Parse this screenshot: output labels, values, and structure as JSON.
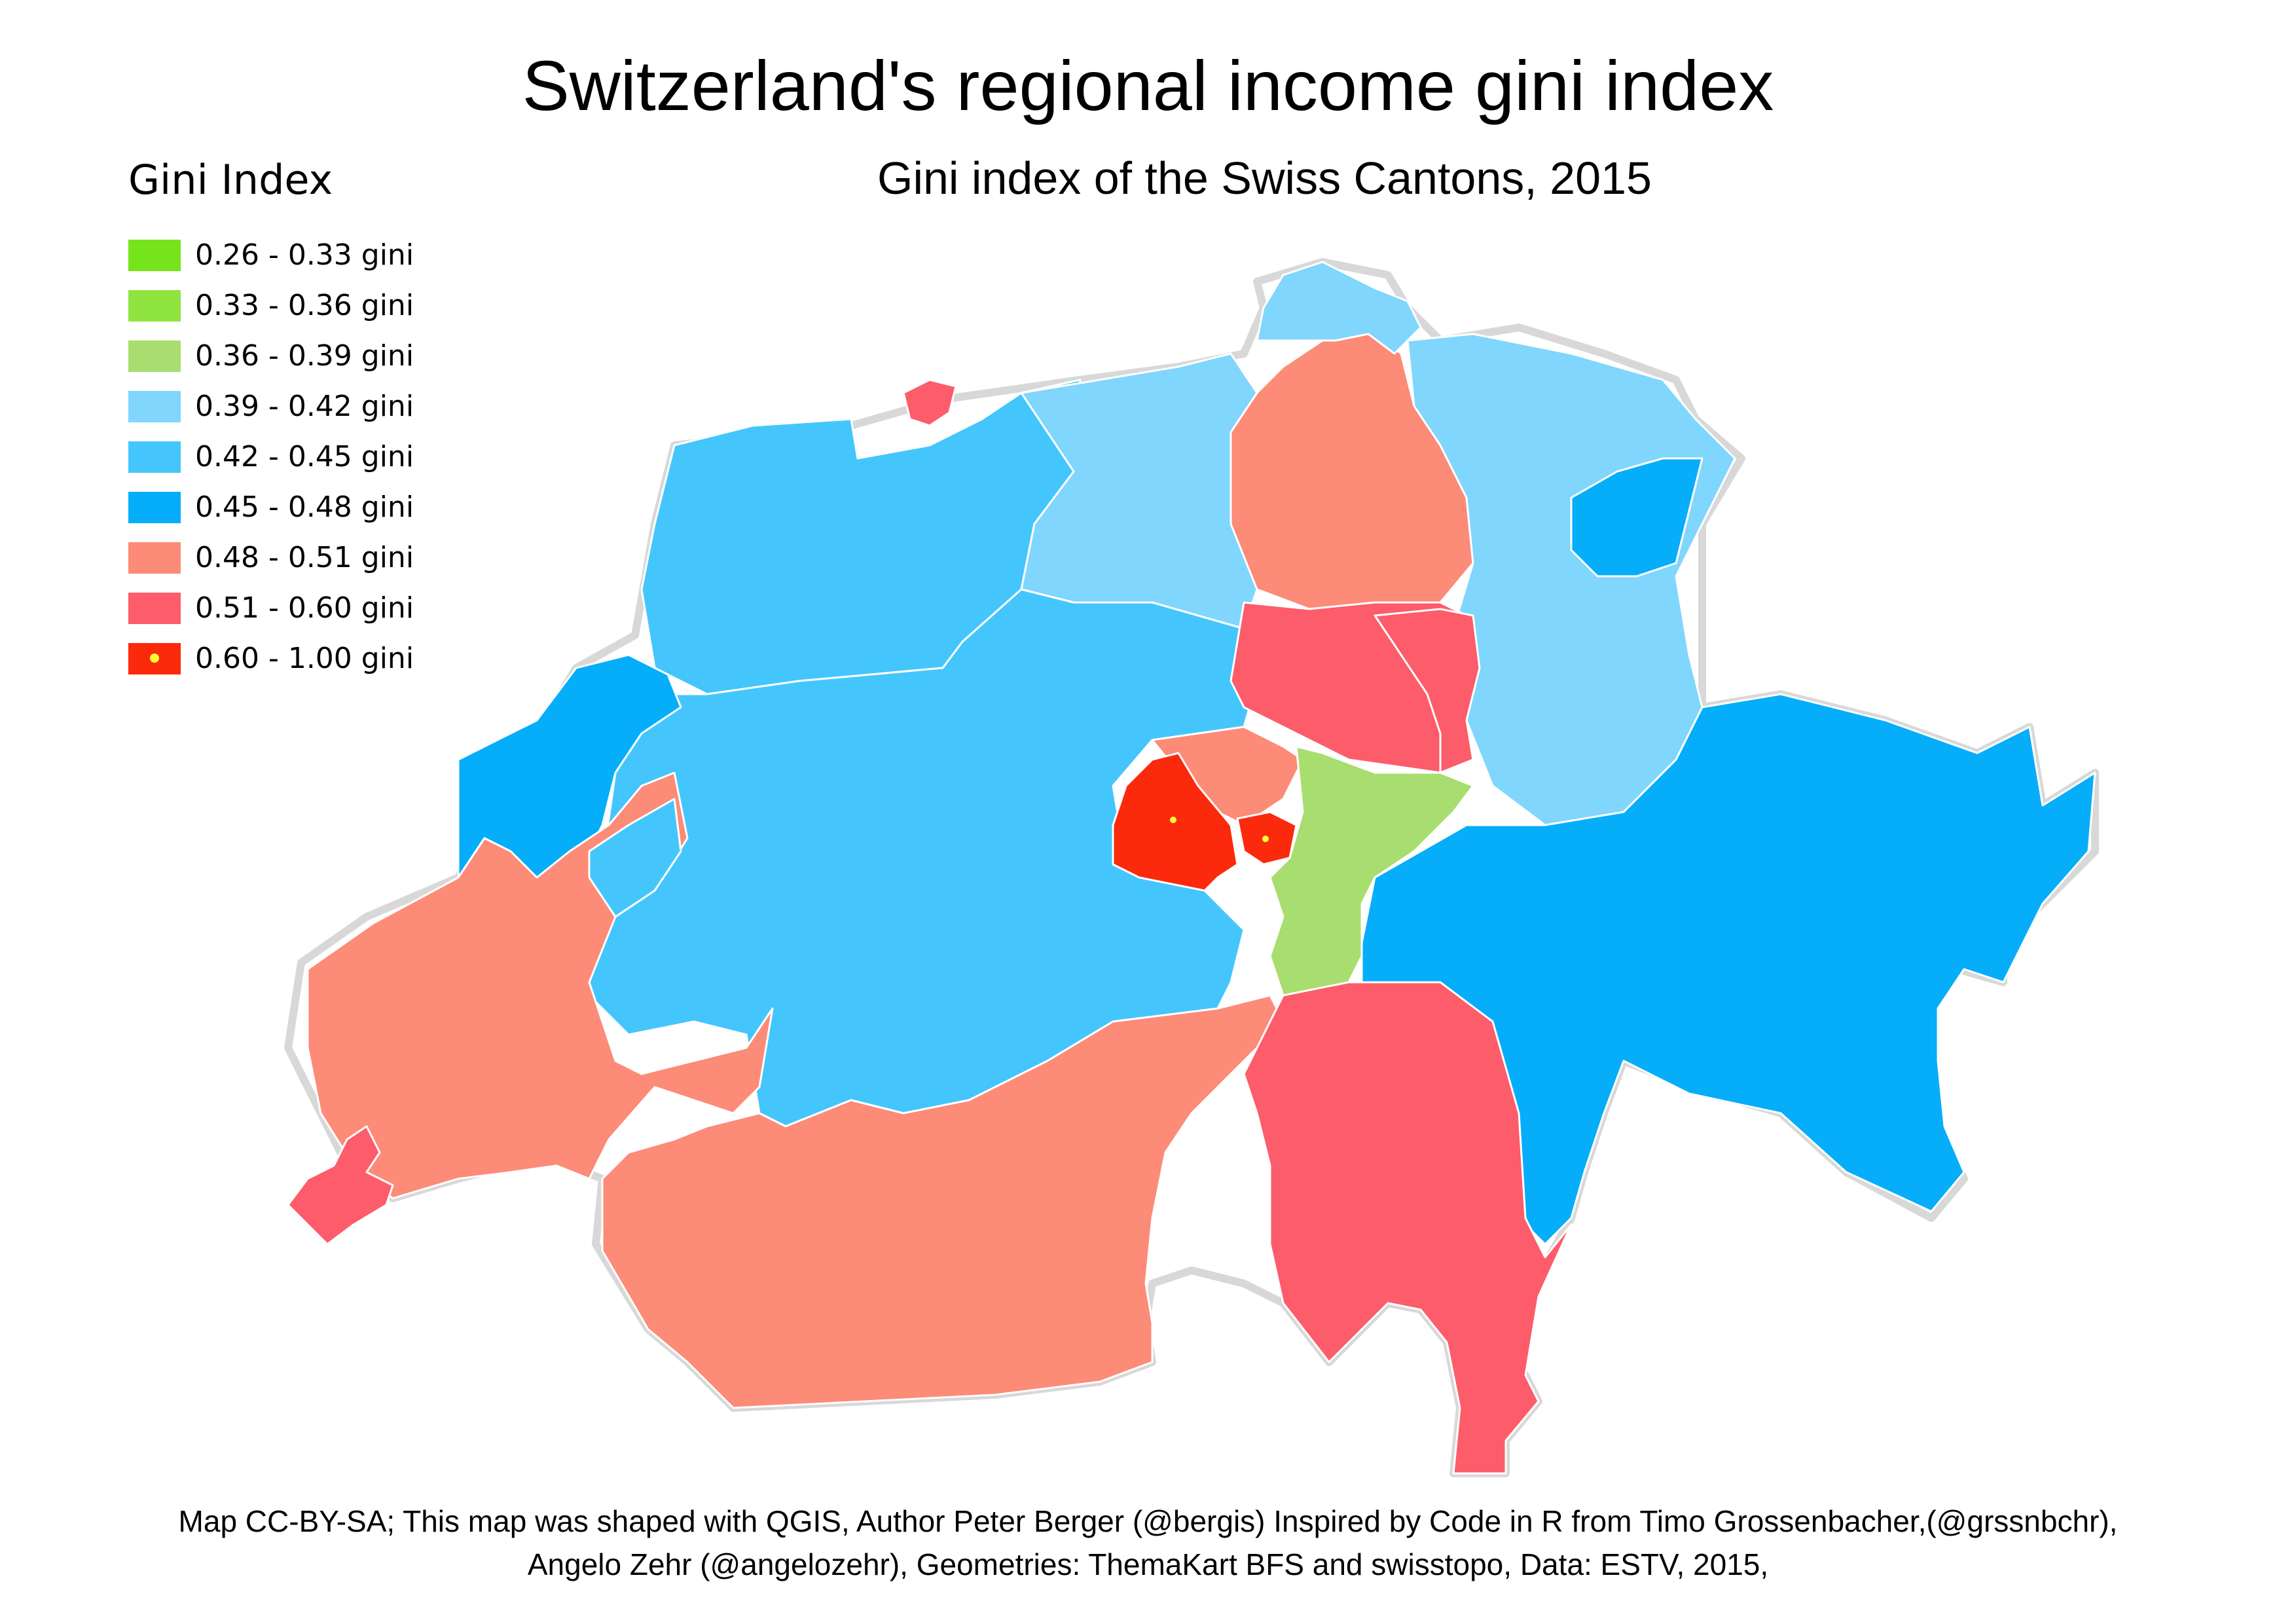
{
  "title": "Switzerland's regional income gini index",
  "subtitle": "Gini index of the Swiss Cantons, 2015",
  "legend": {
    "title": "Gini Index",
    "items": [
      {
        "label": "0.26 - 0.33 gini",
        "color": "#76e41a"
      },
      {
        "label": "0.33 - 0.36 gini",
        "color": "#90e440"
      },
      {
        "label": "0.36 - 0.39 gini",
        "color": "#a8dd70"
      },
      {
        "label": "0.39 - 0.42 gini",
        "color": "#80d6fc"
      },
      {
        "label": "0.42 - 0.45 gini",
        "color": "#44c6fc"
      },
      {
        "label": "0.45 - 0.48 gini",
        "color": "#06aefa"
      },
      {
        "label": "0.48 - 0.51 gini",
        "color": "#fc8b78"
      },
      {
        "label": "0.51 - 0.60 gini",
        "color": "#fd5c6a"
      },
      {
        "label": "0.60 - 1.00 gini",
        "color": "#fb2a0d",
        "marker": "yellow-dot"
      }
    ]
  },
  "credits": {
    "line1": "Map CC-BY-SA; This map was shaped with QGIS, Author Peter Berger (@bergis) Inspired by Code in R from Timo Grossenbacher,(@grssnbchr),",
    "line2": "Angelo Zehr (@angelozehr), Geometries: ThemaKart BFS and swisstopo, Data: ESTV, 2015,"
  }
}
